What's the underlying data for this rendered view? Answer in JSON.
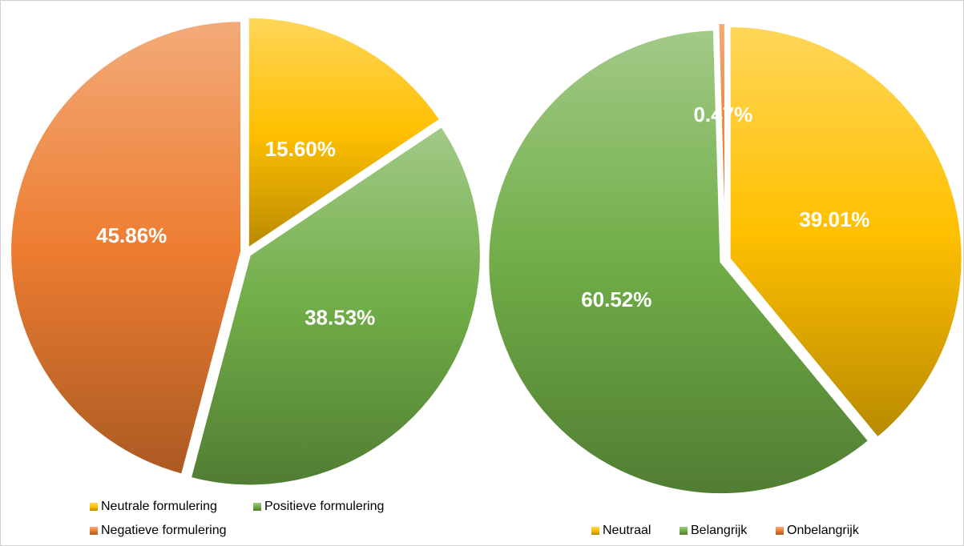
{
  "chart_data": [
    {
      "type": "pie",
      "categories": [
        "Neutrale formulering",
        "Positieve formulering",
        "Negatieve formulering"
      ],
      "values": [
        15.6,
        38.53,
        45.86
      ],
      "value_labels": [
        "15.60%",
        "38.53%",
        "45.86%"
      ],
      "colors": [
        "#ffc000",
        "#70ad47",
        "#ed7d31"
      ]
    },
    {
      "type": "pie",
      "categories": [
        "Neutraal",
        "Belangrijk",
        "Onbelangrijk"
      ],
      "values": [
        39.01,
        60.52,
        0.47
      ],
      "value_labels": [
        "39.01%",
        "60.52%",
        "0.47%"
      ],
      "colors": [
        "#ffc000",
        "#70ad47",
        "#ed7d31"
      ]
    }
  ]
}
